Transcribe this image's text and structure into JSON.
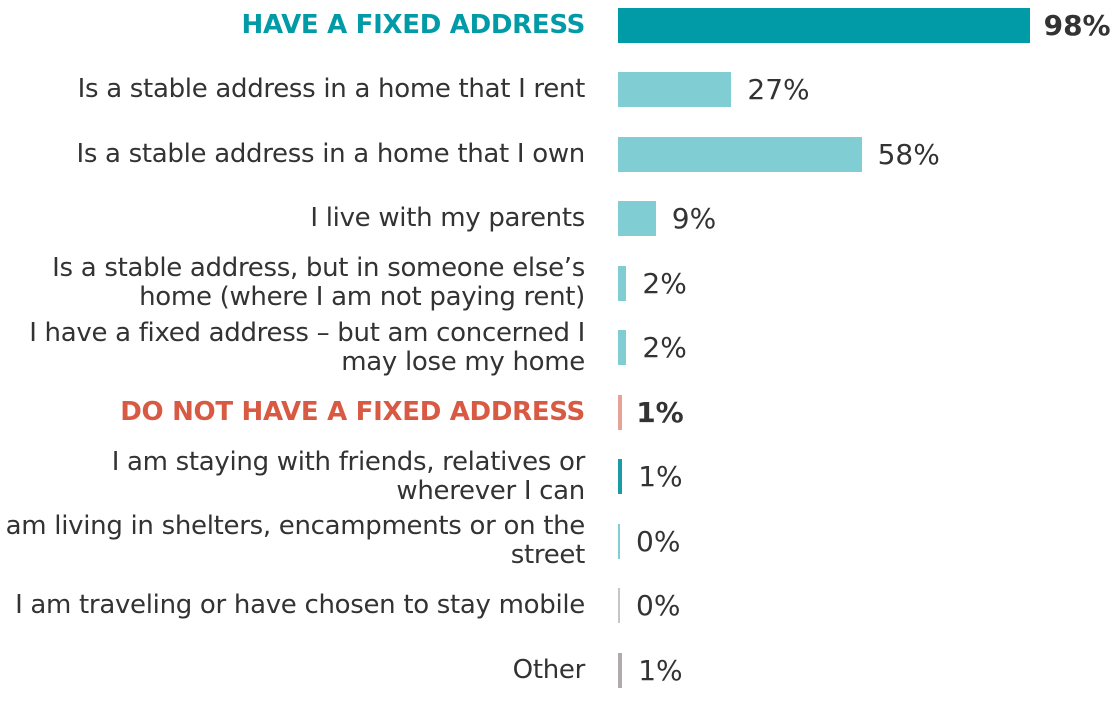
{
  "chart_data": {
    "type": "bar",
    "orientation": "horizontal",
    "categories": [
      "HAVE A FIXED ADDRESS",
      "Is a stable address in a home that I rent",
      "Is a stable address in a home that I own",
      "I live with my parents",
      "Is a stable address, but in someone else’s home (where I am not paying rent)",
      "I have a fixed address – but am concerned I may lose my home",
      "DO NOT HAVE A FIXED ADDRESS",
      "I am staying with friends, relatives or wherever I can",
      "I am living in shelters, encampments or on the street",
      "I am traveling or have chosen to stay mobile",
      "Other"
    ],
    "values": [
      98,
      27,
      58,
      9,
      2,
      2,
      1,
      1,
      0,
      0,
      1
    ],
    "value_labels": [
      "98%",
      "27%",
      "58%",
      "9%",
      "2%",
      "2%",
      "1%",
      "1%",
      "0%",
      "0%",
      "1%"
    ],
    "colors": [
      "#009ba6",
      "#80ced4",
      "#80ced4",
      "#80ced4",
      "#80ced4",
      "#80ced4",
      "#e8a197",
      "#1a9ba6",
      "#80ced4",
      "#c9c4c7",
      "#b1a9ad"
    ],
    "label_colors": [
      "#009ba6",
      "#333333",
      "#333333",
      "#333333",
      "#333333",
      "#333333",
      "#d95a43",
      "#333333",
      "#333333",
      "#333333",
      "#333333"
    ],
    "bold": [
      true,
      false,
      false,
      false,
      false,
      false,
      true,
      false,
      false,
      false,
      false
    ]
  }
}
